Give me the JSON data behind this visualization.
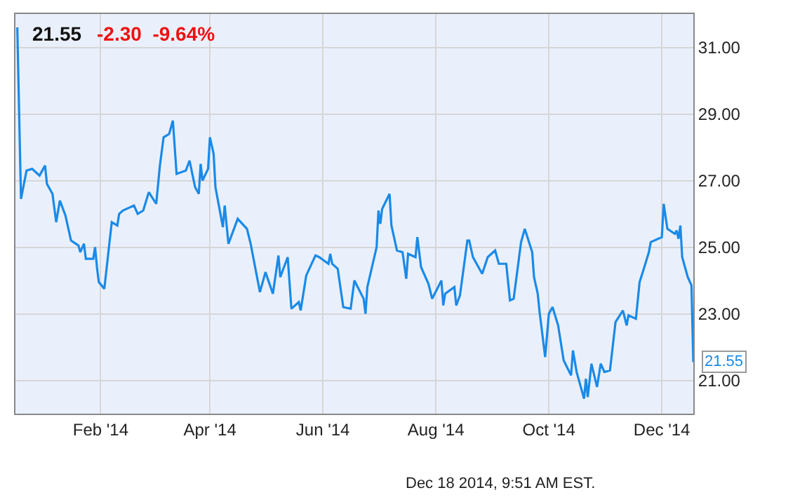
{
  "chart_data": {
    "type": "line",
    "title": "21.55",
    "subtitle": "-2.30  -9.64%",
    "x": [
      "2013-12-18",
      "2013-12-20",
      "2013-12-23",
      "2013-12-26",
      "2013-12-30",
      "2014-01-02",
      "2014-01-03",
      "2014-01-06",
      "2014-01-08",
      "2014-01-10",
      "2014-01-13",
      "2014-01-15",
      "2014-01-16",
      "2014-01-20",
      "2014-01-21",
      "2014-01-23",
      "2014-01-24",
      "2014-01-28",
      "2014-01-29",
      "2014-01-30",
      "2014-01-31",
      "2014-02-03",
      "2014-02-07",
      "2014-02-10",
      "2014-02-11",
      "2014-02-13",
      "2014-02-19",
      "2014-02-21",
      "2014-02-24",
      "2014-02-27",
      "2014-03-03",
      "2014-03-05",
      "2014-03-07",
      "2014-03-10",
      "2014-03-12",
      "2014-03-14",
      "2014-03-19",
      "2014-03-21",
      "2014-03-24",
      "2014-03-26",
      "2014-03-27",
      "2014-03-28",
      "2014-03-31",
      "2014-04-01",
      "2014-04-03",
      "2014-04-04",
      "2014-04-08",
      "2014-04-09",
      "2014-04-11",
      "2014-04-16",
      "2014-04-21",
      "2014-04-23",
      "2014-04-28",
      "2014-05-01",
      "2014-05-05",
      "2014-05-08",
      "2014-05-09",
      "2014-05-13",
      "2014-05-15",
      "2014-05-19",
      "2014-05-20",
      "2014-05-23",
      "2014-05-28",
      "2014-05-30",
      "2014-06-04",
      "2014-06-05",
      "2014-06-06",
      "2014-06-09",
      "2014-06-12",
      "2014-06-16",
      "2014-06-18",
      "2014-06-23",
      "2014-06-24",
      "2014-06-25",
      "2014-06-30",
      "2014-07-01",
      "2014-07-02",
      "2014-07-03",
      "2014-07-07",
      "2014-07-08",
      "2014-07-11",
      "2014-07-14",
      "2014-07-16",
      "2014-07-17",
      "2014-07-21",
      "2014-07-22",
      "2014-07-24",
      "2014-07-28",
      "2014-07-30",
      "2014-08-04",
      "2014-08-05",
      "2014-08-06",
      "2014-08-11",
      "2014-08-12",
      "2014-08-14",
      "2014-08-18",
      "2014-08-19",
      "2014-08-21",
      "2014-08-26",
      "2014-08-29",
      "2014-09-02",
      "2014-09-04",
      "2014-09-08",
      "2014-09-10",
      "2014-09-12",
      "2014-09-16",
      "2014-09-18",
      "2014-09-22",
      "2014-09-23",
      "2014-09-25",
      "2014-09-26",
      "2014-09-29",
      "2014-10-01",
      "2014-10-03",
      "2014-10-06",
      "2014-10-09",
      "2014-10-13",
      "2014-10-14",
      "2014-10-16",
      "2014-10-20",
      "2014-10-21",
      "2014-10-22",
      "2014-10-24",
      "2014-10-27",
      "2014-10-29",
      "2014-10-31",
      "2014-11-03",
      "2014-11-06",
      "2014-11-10",
      "2014-11-12",
      "2014-11-13",
      "2014-11-17",
      "2014-11-19",
      "2014-11-21",
      "2014-11-24",
      "2014-11-25",
      "2014-12-01",
      "2014-12-02",
      "2014-12-04",
      "2014-12-08",
      "2014-12-09",
      "2014-12-10",
      "2014-12-11",
      "2014-12-12",
      "2014-12-15",
      "2014-12-17",
      "2014-12-18"
    ],
    "series": [
      {
        "color": "#1a8ae8",
        "values": [
          31.6,
          26.45,
          27.3,
          27.35,
          27.15,
          27.45,
          26.9,
          26.6,
          25.75,
          26.4,
          25.95,
          25.45,
          25.2,
          25.05,
          24.85,
          25.1,
          24.65,
          24.65,
          25.0,
          24.4,
          23.95,
          23.75,
          25.75,
          25.65,
          26.0,
          26.1,
          26.25,
          26.0,
          26.1,
          26.65,
          26.3,
          27.45,
          28.3,
          28.4,
          28.8,
          27.2,
          27.3,
          27.6,
          26.8,
          26.6,
          27.5,
          27.0,
          27.35,
          28.3,
          27.8,
          26.8,
          25.6,
          26.25,
          25.1,
          25.85,
          25.55,
          25.1,
          23.65,
          24.25,
          23.6,
          24.75,
          24.1,
          24.7,
          23.15,
          23.35,
          23.1,
          24.15,
          24.75,
          24.7,
          24.5,
          24.8,
          24.5,
          24.35,
          23.2,
          23.15,
          24.0,
          23.45,
          23.0,
          23.8,
          25.0,
          26.1,
          25.7,
          26.15,
          26.6,
          25.65,
          24.9,
          24.85,
          24.05,
          24.8,
          24.7,
          25.3,
          24.4,
          23.9,
          23.45,
          24.0,
          23.25,
          23.6,
          23.8,
          23.25,
          23.55,
          25.2,
          25.2,
          24.7,
          24.2,
          24.7,
          24.9,
          24.5,
          24.5,
          23.4,
          23.45,
          25.15,
          25.55,
          24.85,
          24.1,
          23.6,
          23.05,
          21.7,
          23.0,
          23.2,
          22.65,
          21.6,
          21.15,
          21.9,
          21.25,
          20.45,
          21.05,
          20.5,
          21.5,
          20.8,
          21.5,
          21.25,
          21.3,
          22.75,
          23.1,
          22.65,
          22.95,
          22.85,
          23.95,
          24.3,
          24.85,
          25.15,
          25.3,
          26.3,
          25.55,
          25.4,
          25.5,
          25.25,
          25.65,
          24.7,
          24.1,
          23.85,
          21.55
        ]
      }
    ],
    "xlim": [
      "2013-12-17",
      "2014-12-18"
    ],
    "xticks": [
      {
        "value": "2014-02-01",
        "label": "Feb '14"
      },
      {
        "value": "2014-04-01",
        "label": "Apr '14"
      },
      {
        "value": "2014-06-01",
        "label": "Jun '14"
      },
      {
        "value": "2014-08-01",
        "label": "Aug '14"
      },
      {
        "value": "2014-10-01",
        "label": "Oct '14"
      },
      {
        "value": "2014-12-01",
        "label": "Dec '14"
      }
    ],
    "ylim": [
      20,
      32
    ],
    "yticks": [
      {
        "value": 21,
        "label": "21.00"
      },
      {
        "value": 23,
        "label": "23.00"
      },
      {
        "value": 25,
        "label": "25.00"
      },
      {
        "value": 27,
        "label": "27.00"
      },
      {
        "value": 29,
        "label": "29.00"
      },
      {
        "value": 31,
        "label": "31.00"
      }
    ],
    "grid": true,
    "marker": "none",
    "line_style": "solid",
    "annotations": [
      {
        "text": "21.55",
        "x": "2014-12-18",
        "y": 21.55
      },
      "Dec 18 2014, 9:51 AM EST."
    ]
  }
}
